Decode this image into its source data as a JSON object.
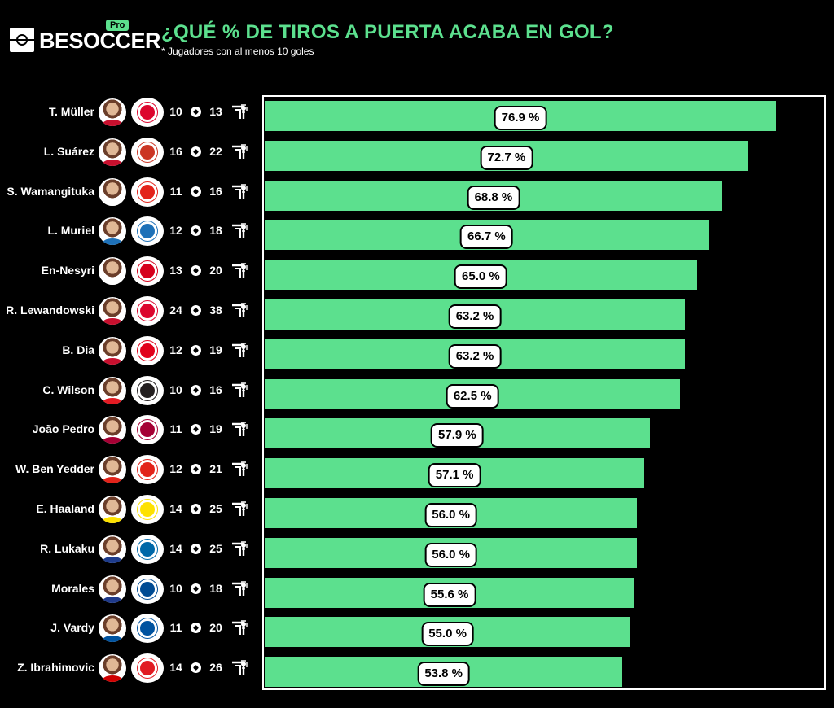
{
  "header": {
    "logo_text": "BESOCCER",
    "logo_badge": "Pro",
    "title": "¿QUÉ % DE TIROS A PUERTA ACABA EN GOL?",
    "subtitle": "* Jugadores con al menos 10 goles"
  },
  "colors": {
    "bar": "#5ce08e",
    "title": "#5ce08e",
    "background": "#000000"
  },
  "icons": {
    "goals": "football-icon",
    "shots": "shot-on-target-icon"
  },
  "chart_data": {
    "type": "bar",
    "orientation": "horizontal",
    "title": "¿QUÉ % DE TIROS A PUERTA ACABA EN GOL?",
    "subtitle": "* Jugadores con al menos 10 goles",
    "xlim": [
      0,
      100
    ],
    "unit": "%",
    "categories": [
      "T. Müller",
      "L. Suárez",
      "S. Wamangituka",
      "L. Muriel",
      "En-Nesyri",
      "R. Lewandowski",
      "B. Dia",
      "C. Wilson",
      "João Pedro",
      "W. Ben Yedder",
      "E. Haaland",
      "R. Lukaku",
      "Morales",
      "J. Vardy",
      "Z. Ibrahimovic"
    ],
    "values": [
      76.9,
      72.7,
      68.8,
      66.7,
      65.0,
      63.2,
      63.2,
      62.5,
      57.9,
      57.1,
      56.0,
      56.0,
      55.6,
      55.0,
      53.8
    ],
    "labels": [
      "76.9 %",
      "72.7 %",
      "68.8 %",
      "66.7 %",
      "65.0 %",
      "63.2 %",
      "63.2 %",
      "62.5 %",
      "57.9 %",
      "57.1 %",
      "56.0 %",
      "56.0 %",
      "55.6 %",
      "55.0 %",
      "53.8 %"
    ],
    "goals": [
      10,
      16,
      11,
      12,
      13,
      24,
      12,
      10,
      11,
      12,
      14,
      14,
      10,
      11,
      14
    ],
    "shots_on_target": [
      13,
      22,
      16,
      18,
      20,
      38,
      19,
      16,
      19,
      21,
      25,
      25,
      18,
      20,
      26
    ],
    "goals_display": [
      "10",
      "16",
      "11",
      "12",
      "13",
      "24",
      "12",
      "10",
      "11",
      "12",
      "14",
      "14",
      "10",
      "11",
      "14"
    ],
    "shots_display": [
      "13",
      "22",
      "16",
      "18",
      "20",
      "38",
      "19",
      "16",
      "19",
      "21",
      "25",
      "25",
      "18",
      "20",
      "26"
    ],
    "kit_colors": [
      "#c8102e",
      "#c8102e",
      "#ffffff",
      "#1e71b8",
      "#ffffff",
      "#c8102e",
      "#c8102e",
      "#e31b23",
      "#a50034",
      "#e2231a",
      "#fde100",
      "#1e3c8c",
      "#1f3a8a",
      "#0053a0",
      "#d00000"
    ],
    "club_colors": [
      "#dc052d",
      "#cb3524",
      "#e32219",
      "#1e71b8",
      "#d6001c",
      "#dc052d",
      "#e1001a",
      "#241f20",
      "#a50034",
      "#e2231a",
      "#fde100",
      "#0068a8",
      "#004b93",
      "#0053a0",
      "#e11b22"
    ]
  }
}
